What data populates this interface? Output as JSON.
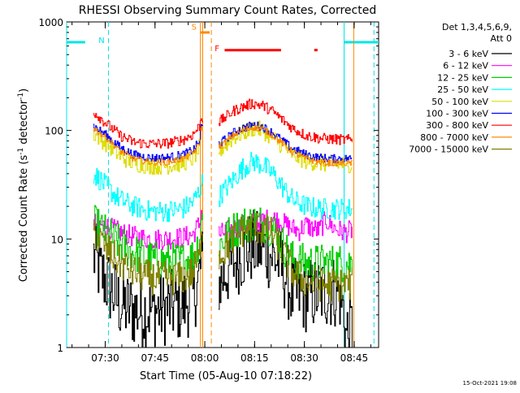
{
  "chart_data": {
    "type": "line",
    "title": "RHESSI Observing Summary Count Rates, Corrected",
    "xlabel": "Start Time (05-Aug-10 07:18:22)",
    "ylabel_main": "Corrected Count Rate (s",
    "ylabel_sup1": "-1",
    "ylabel_mid": " detector",
    "ylabel_sup2": "-1",
    "ylabel_end": ")",
    "footer_date": "15-Oct-2021 19:08",
    "x_start": "07:18:22",
    "x_unit": "minutes after 07:18:22",
    "xlim": [
      0,
      94
    ],
    "x_ticks": [
      {
        "x": 11.63,
        "label": "07:30"
      },
      {
        "x": 26.63,
        "label": "07:45"
      },
      {
        "x": 41.63,
        "label": "08:00"
      },
      {
        "x": 56.63,
        "label": "08:15"
      },
      {
        "x": 71.63,
        "label": "08:30"
      },
      {
        "x": 86.63,
        "label": "08:45"
      }
    ],
    "y_scale": "log",
    "ylim": [
      1,
      1000
    ],
    "y_ticks": [
      {
        "value": 1,
        "label": "1"
      },
      {
        "value": 10,
        "label": "10"
      },
      {
        "value": 100,
        "label": "100"
      },
      {
        "value": 1000,
        "label": "1000"
      }
    ],
    "legend_header": [
      "Det 1,3,4,5,6,9,",
      "Att 0"
    ],
    "legend_position": "right",
    "markers": {
      "night_label": "N",
      "saa_label": "S",
      "flare_label": "F",
      "night_color": "#00e5e5",
      "saa_color": "#ff8800",
      "flare_color": "#ff0000",
      "night_flag_value": 650,
      "night_spans": [
        [
          0,
          5.6
        ],
        [
          83.6,
          94
        ]
      ],
      "night_edges": [
        [
          0,
          "solid"
        ],
        [
          12.6,
          "dashed"
        ],
        [
          83.6,
          "solid"
        ],
        [
          92.6,
          "dashed"
        ]
      ],
      "saa_span": [
        40.3,
        42.6
      ],
      "saa_edges": [
        [
          40.3,
          "solid"
        ],
        [
          41.0,
          "solid"
        ],
        [
          43.6,
          "dashed"
        ],
        [
          86.5,
          "solid"
        ]
      ],
      "flare_spans": [
        [
          47.6,
          64.6
        ],
        [
          74.6,
          75.6
        ]
      ]
    },
    "gaps": [
      [
        41.0,
        45.6
      ],
      [
        86.5,
        94
      ]
    ],
    "series": [
      {
        "name": "3 - 6 keV",
        "color": "#000000",
        "noise": 0.35,
        "x": [
          8,
          10,
          13,
          16,
          20,
          25,
          30,
          35,
          38,
          39.5,
          40.5,
          46,
          48,
          52,
          56,
          60,
          64,
          66,
          68,
          72,
          76,
          80,
          82,
          83.6,
          84,
          86
        ],
        "y": [
          7,
          5,
          3.5,
          2.5,
          2.2,
          2.2,
          2.3,
          2.5,
          3,
          4,
          6,
          4,
          5,
          7,
          8.5,
          8,
          6,
          4.5,
          3,
          3,
          3.2,
          3.3,
          3.3,
          2,
          1.3,
          1.5
        ]
      },
      {
        "name": "6 - 12 keV",
        "color": "#ff00ff",
        "noise": 0.1,
        "x": [
          8,
          12,
          16,
          20,
          25,
          30,
          35,
          38,
          40,
          40.5,
          46,
          50,
          54,
          56,
          58,
          60,
          62,
          64,
          66,
          68,
          70,
          72,
          74,
          76,
          78,
          80,
          82,
          84,
          86
        ],
        "y": [
          14,
          13,
          11.5,
          10.5,
          10,
          10,
          10.3,
          11,
          14,
          18,
          11,
          12.5,
          13.5,
          14,
          14.5,
          15,
          15.5,
          14.5,
          13.5,
          12.5,
          12,
          13.5,
          12.5,
          12,
          15,
          13,
          12,
          11.5,
          12
        ]
      },
      {
        "name": "12 - 25 keV",
        "color": "#00cc00",
        "noise": 0.18,
        "x": [
          8,
          12,
          16,
          20,
          25,
          30,
          35,
          38,
          40,
          40.5,
          46,
          50,
          53,
          56,
          59,
          62,
          64,
          66,
          68,
          72,
          76,
          80,
          84,
          86
        ],
        "y": [
          14,
          11,
          9,
          7.5,
          6.5,
          6.2,
          6.3,
          7,
          10,
          15,
          9,
          12,
          13.5,
          14.2,
          14,
          12.5,
          10,
          8,
          6.5,
          6,
          6,
          6,
          6,
          6
        ]
      },
      {
        "name": "25 - 50 keV",
        "color": "#00ffff",
        "noise": 0.1,
        "x": [
          8,
          10,
          13,
          16,
          20,
          25,
          30,
          35,
          38,
          40,
          40.5,
          46,
          50,
          53,
          56,
          59,
          62,
          65,
          68,
          72,
          76,
          80,
          84,
          86
        ],
        "y": [
          40,
          35,
          28,
          23,
          20,
          18,
          18,
          19,
          22,
          28,
          33,
          25,
          35,
          45,
          52,
          48,
          40,
          30,
          23,
          20,
          19,
          19,
          19,
          19
        ]
      },
      {
        "name": "50 - 100 keV",
        "color": "#dddd00",
        "noise": 0.08,
        "x": [
          8,
          12,
          16,
          20,
          25,
          30,
          35,
          38,
          40,
          40.5,
          46,
          50,
          53,
          56,
          59,
          62,
          65,
          68,
          72,
          76,
          80,
          84,
          86
        ],
        "y": [
          95,
          75,
          58,
          50,
          47,
          47,
          50,
          55,
          70,
          95,
          65,
          85,
          95,
          105,
          100,
          85,
          72,
          60,
          52,
          50,
          49,
          49,
          49
        ]
      },
      {
        "name": "100 - 300 keV",
        "color": "#0000ff",
        "noise": 0.04,
        "x": [
          8,
          12,
          16,
          20,
          25,
          30,
          35,
          38,
          40,
          40.5,
          46,
          50,
          53,
          56,
          59,
          62,
          65,
          68,
          72,
          76,
          80,
          84,
          86
        ],
        "y": [
          110,
          90,
          70,
          60,
          56,
          56,
          60,
          66,
          80,
          110,
          75,
          95,
          105,
          112,
          108,
          95,
          80,
          68,
          60,
          56,
          55,
          55,
          55
        ]
      },
      {
        "name": "300 - 800 keV",
        "color": "#ff0000",
        "noise": 0.05,
        "x": [
          8,
          12,
          16,
          20,
          25,
          30,
          35,
          38,
          40,
          40.5,
          46,
          50,
          53,
          56,
          59,
          62,
          65,
          68,
          72,
          76,
          80,
          84,
          86
        ],
        "y": [
          150,
          115,
          90,
          78,
          75,
          76,
          82,
          92,
          110,
          130,
          120,
          150,
          165,
          178,
          170,
          150,
          125,
          105,
          90,
          85,
          83,
          82,
          82
        ]
      },
      {
        "name": "800 - 7000 keV",
        "color": "#ff8800",
        "noise": 0.03,
        "x": [
          8,
          12,
          16,
          20,
          25,
          30,
          35,
          38,
          40,
          40.5,
          46,
          50,
          53,
          56,
          59,
          62,
          65,
          68,
          72,
          76,
          80,
          84,
          86
        ],
        "y": [
          105,
          85,
          65,
          55,
          51,
          51,
          55,
          62,
          75,
          100,
          70,
          90,
          100,
          107,
          103,
          90,
          76,
          63,
          55,
          51,
          50,
          50,
          50
        ]
      },
      {
        "name": "7000 - 15000 keV",
        "color": "#808000",
        "noise": 0.16,
        "x": [
          8,
          12,
          16,
          20,
          25,
          30,
          35,
          38,
          40,
          40.5,
          46,
          50,
          53,
          56,
          59,
          62,
          64,
          66,
          68,
          72,
          76,
          80,
          84,
          86
        ],
        "y": [
          12,
          8,
          6,
          5,
          4.4,
          4.3,
          4.4,
          5,
          7,
          13,
          7,
          10,
          12,
          13,
          12.5,
          11,
          8.5,
          6.5,
          5,
          4,
          3.8,
          3.8,
          3.8,
          3.8
        ]
      }
    ]
  }
}
